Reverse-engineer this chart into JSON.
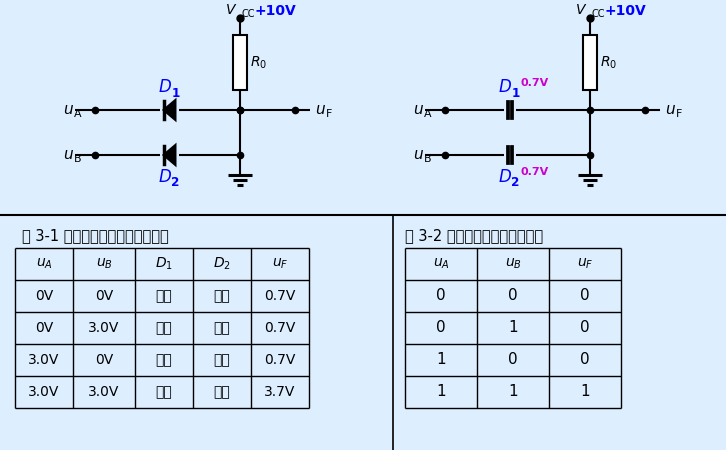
{
  "bg_color": "#ddeeff",
  "table1_title": "表 3-1 二极管与门的输入输出电压",
  "table2_title": "表 3-2 二极管与门的逻辑功能表",
  "table1_headers": [
    "u_A",
    "u_B",
    "D_1",
    "D_2",
    "u_F"
  ],
  "table1_rows": [
    [
      "0V",
      "0V",
      "导通",
      "导通",
      "0.7V"
    ],
    [
      "0V",
      "3.0V",
      "导通",
      "截止",
      "0.7V"
    ],
    [
      "3.0V",
      "0V",
      "截止",
      "导通",
      "0.7V"
    ],
    [
      "3.0V",
      "3.0V",
      "导通",
      "导通",
      "3.7V"
    ]
  ],
  "table2_headers": [
    "u_A",
    "u_B",
    "u_F"
  ],
  "table2_rows": [
    [
      "0",
      "0",
      "0"
    ],
    [
      "0",
      "1",
      "0"
    ],
    [
      "1",
      "0",
      "0"
    ],
    [
      "1",
      "1",
      "1"
    ]
  ],
  "vcc_color": "#0000ff",
  "d_label_color": "#0000ff",
  "vf_label_color": "#cc00cc",
  "line_color": "#000000",
  "bg_top": "#ddeeff"
}
